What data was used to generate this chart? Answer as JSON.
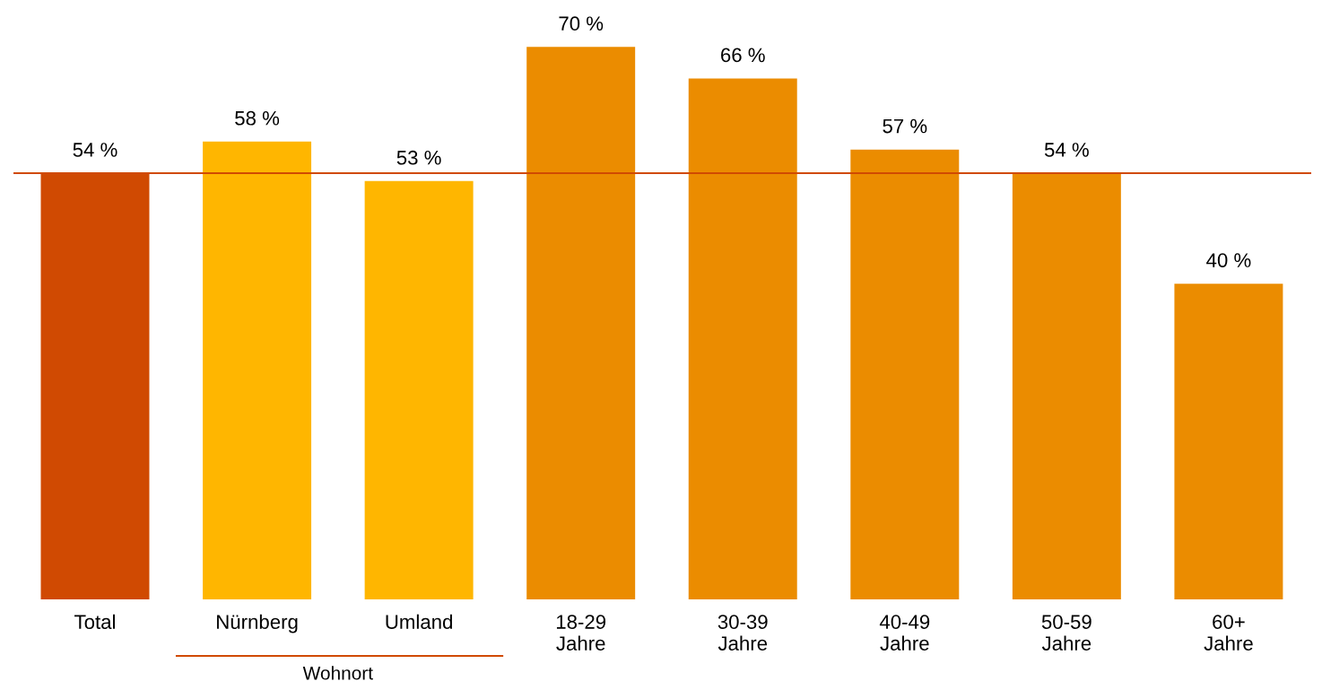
{
  "chart_data": {
    "type": "bar",
    "categories": [
      "Total",
      "Nürnberg",
      "Umland",
      "18-29\nJahre",
      "30-39\nJahre",
      "40-49\nJahre",
      "50-59\nJahre",
      "60+\nJahre"
    ],
    "values": [
      54,
      58,
      53,
      70,
      66,
      57,
      54,
      40
    ],
    "colors": [
      "#d04a02",
      "#ffb600",
      "#ffb600",
      "#eb8c00",
      "#eb8c00",
      "#eb8c00",
      "#eb8c00",
      "#eb8c00"
    ],
    "value_labels": [
      "54 %",
      "58 %",
      "53 %",
      "70 %",
      "66 %",
      "57 %",
      "54 %",
      "40 %"
    ],
    "ref_lines": [
      {
        "axis": "y",
        "value": 54,
        "color": "#d04a02",
        "line_style": "solid"
      }
    ],
    "annotations": [
      "Wohnort"
    ],
    "tick_labels": "x",
    "grid": false,
    "legend": false
  }
}
